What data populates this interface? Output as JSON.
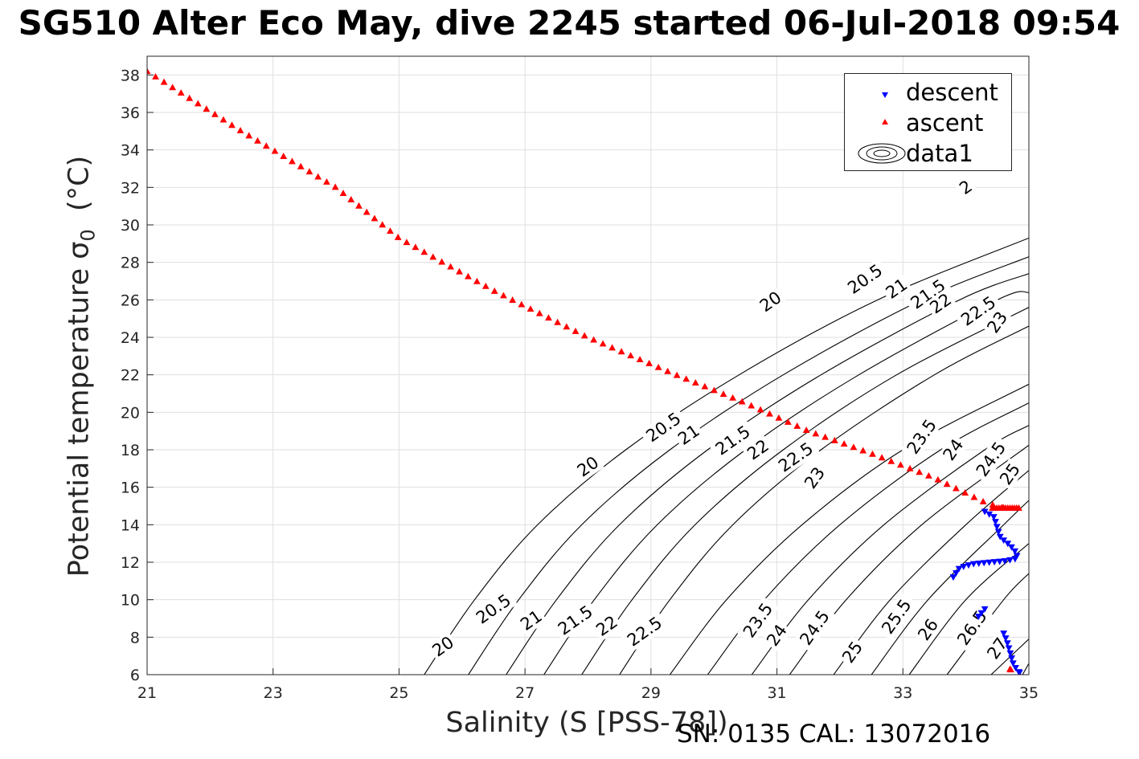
{
  "title": "SG510 Alter Eco May, dive 2245 started 06-Jul-2018 09:54",
  "xlabel": "Salinity (S [PSS-78])",
  "ylabel": {
    "main": "Potential temperature σ",
    "sub": "0",
    "unit": "(°C)"
  },
  "footer": "SN: 0135  CAL: 13072016",
  "legend": {
    "placement": "top-right",
    "entries": [
      "descent",
      "ascent",
      "data1"
    ]
  },
  "colors": {
    "descent": "#0000ff",
    "ascent": "#ff0000",
    "contour": "#000000",
    "grid": "#dfdfdf"
  },
  "chart_data": {
    "type": "scatter",
    "xlim": [
      21,
      35
    ],
    "ylim": [
      6,
      39
    ],
    "xticks": [
      "21",
      "23",
      "25",
      "27",
      "29",
      "31",
      "33",
      "35"
    ],
    "yticks": [
      "6",
      "8",
      "10",
      "12",
      "14",
      "16",
      "18",
      "20",
      "22",
      "24",
      "26",
      "28",
      "30",
      "32",
      "34",
      "36",
      "38"
    ],
    "grid": true,
    "contours": {
      "family_a": [
        {
          "level": "20",
          "pts": [
            [
              25.4,
              6
            ],
            [
              26.2,
              10
            ],
            [
              27.2,
              14
            ],
            [
              28.6,
              18
            ],
            [
              30.4,
              22
            ],
            [
              32.6,
              26
            ],
            [
              35,
              29.3
            ]
          ]
        },
        {
          "level": "20.5",
          "pts": [
            [
              26.1,
              6
            ],
            [
              26.9,
              10
            ],
            [
              27.9,
              14
            ],
            [
              29.3,
              18
            ],
            [
              31.1,
              22
            ],
            [
              33.3,
              26
            ],
            [
              35,
              28.3
            ]
          ]
        },
        {
          "level": "21",
          "pts": [
            [
              26.7,
              6
            ],
            [
              27.5,
              10
            ],
            [
              28.5,
              14
            ],
            [
              29.9,
              18
            ],
            [
              31.7,
              22
            ],
            [
              33.9,
              26
            ],
            [
              35,
              27.4
            ]
          ]
        },
        {
          "level": "21.5",
          "pts": [
            [
              27.3,
              6
            ],
            [
              28.1,
              10
            ],
            [
              29.1,
              14
            ],
            [
              30.5,
              18
            ],
            [
              32.3,
              22
            ],
            [
              34.5,
              26
            ],
            [
              35,
              26.4
            ]
          ]
        },
        {
          "level": "22",
          "pts": [
            [
              27.9,
              6
            ],
            [
              28.7,
              10
            ],
            [
              29.7,
              14
            ],
            [
              31.1,
              18
            ],
            [
              32.9,
              22
            ],
            [
              35,
              25.6
            ]
          ]
        },
        {
          "level": "22.5",
          "pts": [
            [
              28.5,
              6
            ],
            [
              29.3,
              10
            ],
            [
              30.3,
              14
            ],
            [
              31.7,
              18
            ],
            [
              33.5,
              22
            ],
            [
              35,
              24.6
            ]
          ]
        }
      ],
      "family_b": [
        {
          "level": "",
          "pts": [
            [
              29.3,
              6
            ],
            [
              30.2,
              10
            ],
            [
              31.4,
              14
            ],
            [
              33,
              18
            ],
            [
              35,
              21.5
            ]
          ]
        },
        {
          "level": "23.5",
          "pts": [
            [
              29.9,
              6
            ],
            [
              30.8,
              10
            ],
            [
              32,
              14
            ],
            [
              33.6,
              18
            ],
            [
              35,
              20.5
            ]
          ]
        },
        {
          "level": "24",
          "pts": [
            [
              30.6,
              6
            ],
            [
              31.5,
              10
            ],
            [
              32.7,
              14
            ],
            [
              34.3,
              18
            ],
            [
              35,
              19.3
            ]
          ]
        },
        {
          "level": "24.5",
          "pts": [
            [
              31.2,
              6
            ],
            [
              32.1,
              10
            ],
            [
              33.3,
              14
            ],
            [
              34.9,
              18
            ],
            [
              35,
              18.2
            ]
          ]
        },
        {
          "level": "25",
          "pts": [
            [
              31.9,
              6
            ],
            [
              32.8,
              10
            ],
            [
              34,
              14
            ],
            [
              35,
              16.9
            ]
          ]
        },
        {
          "level": "25.5",
          "pts": [
            [
              32.5,
              6
            ],
            [
              33.4,
              10
            ],
            [
              34.6,
              14
            ],
            [
              35,
              15.3
            ]
          ]
        },
        {
          "level": "26",
          "pts": [
            [
              33.1,
              6
            ],
            [
              34,
              10
            ],
            [
              35,
              13
            ]
          ]
        },
        {
          "level": "26.5",
          "pts": [
            [
              33.7,
              6
            ],
            [
              34.6,
              10
            ],
            [
              35,
              11.4
            ]
          ]
        },
        {
          "level": "27",
          "pts": [
            [
              34.4,
              6
            ],
            [
              35,
              7.9
            ]
          ]
        },
        {
          "level": "",
          "pts": [
            [
              34.9,
              6
            ],
            [
              35,
              6.6
            ]
          ]
        }
      ],
      "labels_a": [
        {
          "text": "20",
          "x": 25.7,
          "y": 7.5
        },
        {
          "text": "20.5",
          "x": 26.5,
          "y": 9.5
        },
        {
          "text": "21",
          "x": 27.1,
          "y": 8.9
        },
        {
          "text": "21.5",
          "x": 27.8,
          "y": 8.9
        },
        {
          "text": "22",
          "x": 28.3,
          "y": 8.6
        },
        {
          "text": "22.5",
          "x": 28.9,
          "y": 8.3
        },
        {
          "text": "20",
          "x": 28.0,
          "y": 17.1
        },
        {
          "text": "20.5",
          "x": 29.2,
          "y": 19.2
        },
        {
          "text": "21",
          "x": 29.6,
          "y": 18.8
        },
        {
          "text": "21.5",
          "x": 30.3,
          "y": 18.5
        },
        {
          "text": "22",
          "x": 30.7,
          "y": 18.0
        },
        {
          "text": "22.5",
          "x": 31.3,
          "y": 17.6
        },
        {
          "text": "20",
          "x": 30.9,
          "y": 25.9
        },
        {
          "text": "20.5",
          "x": 32.4,
          "y": 27.1
        },
        {
          "text": "21",
          "x": 32.9,
          "y": 26.6
        },
        {
          "text": "21.5",
          "x": 33.4,
          "y": 26.3
        },
        {
          "text": "22",
          "x": 33.6,
          "y": 25.8
        },
        {
          "text": "22.5",
          "x": 34.2,
          "y": 25.4
        },
        {
          "text": "2",
          "x": 34.0,
          "y": 32.0
        }
      ],
      "labels_b": [
        {
          "text": "23",
          "x": 34.5,
          "y": 24.8
        },
        {
          "text": "23",
          "x": 31.6,
          "y": 16.5
        },
        {
          "text": "23.5",
          "x": 33.3,
          "y": 18.7
        },
        {
          "text": "24",
          "x": 33.8,
          "y": 18.0
        },
        {
          "text": "24.5",
          "x": 34.4,
          "y": 17.5
        },
        {
          "text": "25",
          "x": 34.7,
          "y": 16.7
        },
        {
          "text": "23.5",
          "x": 30.7,
          "y": 8.9
        },
        {
          "text": "24",
          "x": 31.0,
          "y": 8.1
        },
        {
          "text": "24.5",
          "x": 31.6,
          "y": 8.5
        },
        {
          "text": "25",
          "x": 32.2,
          "y": 7.2
        },
        {
          "text": "25.5",
          "x": 32.9,
          "y": 9.1
        },
        {
          "text": "26",
          "x": 33.4,
          "y": 8.4
        },
        {
          "text": "26.5",
          "x": 34.1,
          "y": 8.5
        },
        {
          "text": "27",
          "x": 34.5,
          "y": 7.4
        }
      ]
    },
    "series": [
      {
        "name": "ascent",
        "marker": "triangle-up",
        "color": "#ff0000",
        "segments": [
          [
            [
              21.0,
              38.2
            ],
            [
              22.5,
              35.0
            ],
            [
              24.0,
              32.0
            ],
            [
              25.0,
              29.3
            ],
            [
              26.5,
              26.5
            ],
            [
              28.0,
              24.0
            ],
            [
              29.4,
              22.0
            ],
            [
              30.5,
              20.5
            ],
            [
              31.5,
              19.0
            ],
            [
              32.5,
              17.8
            ],
            [
              33.5,
              16.5
            ],
            [
              34.3,
              15.2
            ],
            [
              34.6,
              14.9
            ]
          ],
          [
            [
              34.85,
              6.0
            ],
            [
              34.7,
              6.3
            ]
          ]
        ],
        "cluster": {
          "x": [
            34.42,
            34.85
          ],
          "y": 14.9
        }
      },
      {
        "name": "descent",
        "marker": "triangle-down",
        "color": "#0000ff",
        "segments": [
          [
            [
              34.3,
              14.7
            ],
            [
              34.45,
              14.4
            ],
            [
              34.5,
              13.8
            ],
            [
              34.55,
              13.3
            ],
            [
              34.7,
              12.9
            ],
            [
              34.8,
              12.5
            ],
            [
              34.82,
              12.2
            ],
            [
              34.6,
              12.05
            ],
            [
              34.4,
              12.0
            ],
            [
              34.1,
              11.9
            ],
            [
              33.9,
              11.7
            ],
            [
              33.8,
              11.2
            ]
          ],
          [
            [
              34.3,
              9.5
            ],
            [
              34.2,
              9.1
            ]
          ],
          [
            [
              34.6,
              8.2
            ],
            [
              34.65,
              7.8
            ],
            [
              34.7,
              7.2
            ],
            [
              34.75,
              6.6
            ],
            [
              34.8,
              6.3
            ],
            [
              34.85,
              6.1
            ]
          ]
        ]
      }
    ]
  }
}
